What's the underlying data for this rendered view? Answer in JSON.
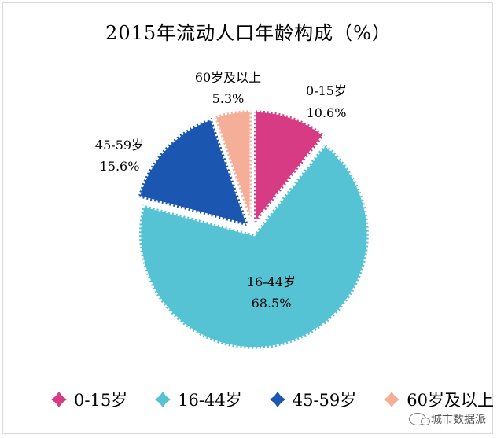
{
  "chart_data": {
    "type": "pie",
    "title": "2015年流动人口年龄构成（%）",
    "categories": [
      "0-15岁",
      "16-44岁",
      "45-59岁",
      "60岁及以上"
    ],
    "values": [
      10.6,
      68.5,
      15.6,
      5.3
    ],
    "value_labels": [
      "10.6%",
      "68.5%",
      "15.6%",
      "5.3%"
    ],
    "colors": [
      "#D63B83",
      "#56C3D5",
      "#1B57B1",
      "#F5AF98"
    ],
    "exploded": true,
    "legend_position": "bottom"
  },
  "watermark": {
    "text": "城市数据派"
  }
}
